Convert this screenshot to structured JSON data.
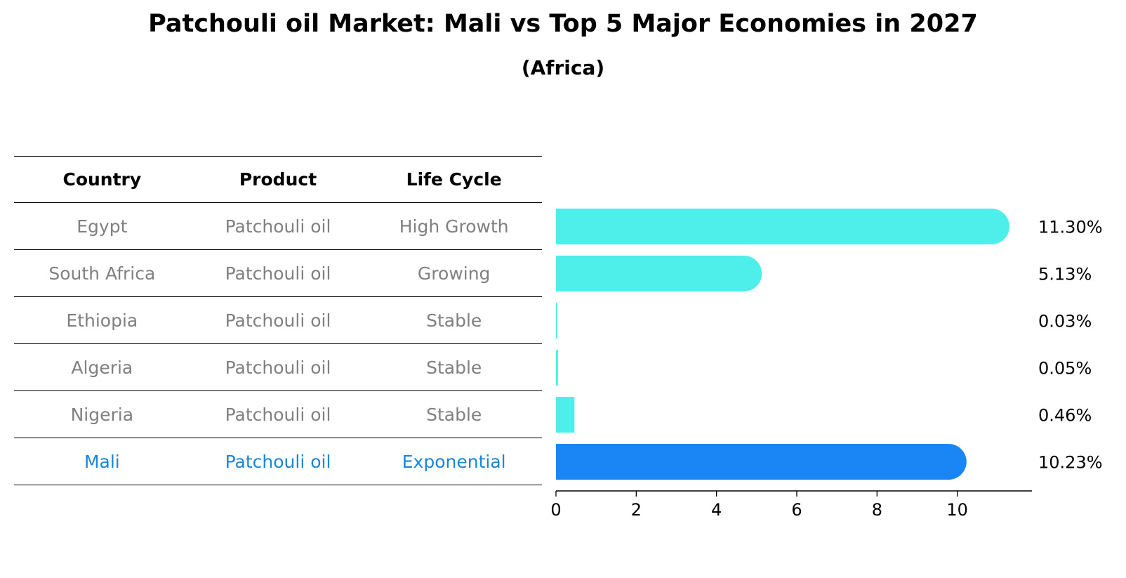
{
  "title": "Patchouli oil Market: Mali vs Top 5 Major Economies in 2027",
  "subtitle": "(Africa)",
  "table": {
    "headers": [
      "Country",
      "Product",
      "Life Cycle"
    ],
    "rows": [
      {
        "country": "Egypt",
        "product": "Patchouli oil",
        "life_cycle": "High Growth"
      },
      {
        "country": "South Africa",
        "product": "Patchouli oil",
        "life_cycle": "Growing"
      },
      {
        "country": "Ethiopia",
        "product": "Patchouli oil",
        "life_cycle": "Stable"
      },
      {
        "country": "Algeria",
        "product": "Patchouli oil",
        "life_cycle": "Stable"
      },
      {
        "country": "Nigeria",
        "product": "Patchouli oil",
        "life_cycle": "Stable"
      },
      {
        "country": "Mali",
        "product": "Patchouli oil",
        "life_cycle": "Exponential"
      }
    ]
  },
  "colors": {
    "bar": "#4eeeea",
    "highlight_bar": "#1a86f5",
    "highlight_text": "#1a86d8",
    "muted_text": "#808080"
  },
  "chart_data": {
    "type": "bar",
    "orientation": "horizontal",
    "categories": [
      "Egypt",
      "South Africa",
      "Ethiopia",
      "Algeria",
      "Nigeria",
      "Mali"
    ],
    "values": [
      11.3,
      5.13,
      0.03,
      0.05,
      0.46,
      10.23
    ],
    "value_labels": [
      "11.30%",
      "5.13%",
      "0.03%",
      "0.05%",
      "0.46%",
      "10.23%"
    ],
    "highlight": "Mali",
    "xlim": [
      0,
      11.86
    ],
    "xticks": [
      0,
      2,
      4,
      6,
      8,
      10
    ],
    "title": "Patchouli oil Market: Mali vs Top 5 Major Economies in 2027",
    "subtitle": "(Africa)",
    "grid": false
  }
}
